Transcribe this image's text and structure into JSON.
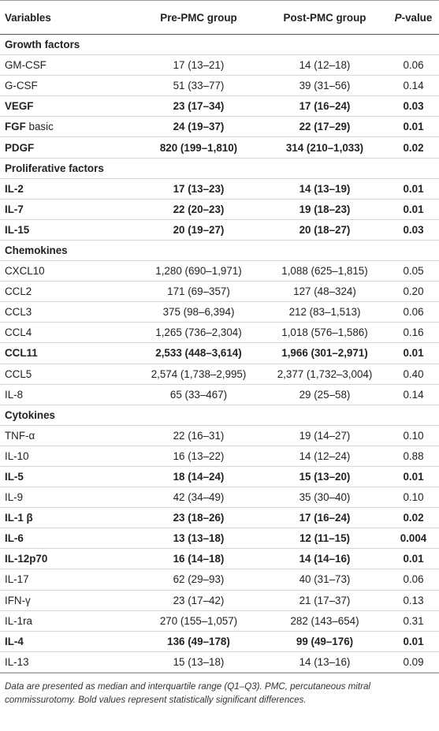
{
  "header": {
    "variables": "Variables",
    "pre": "Pre-PMC group",
    "post": "Post-PMC group",
    "p_italic": "P",
    "p_rest": "-value"
  },
  "sections": [
    {
      "title": "Growth factors",
      "rows": [
        {
          "name": "GM-CSF",
          "pre": "17 (13–21)",
          "post": "14 (12–18)",
          "p": "0.06",
          "bold": false
        },
        {
          "name": "G-CSF",
          "pre": "51 (33–77)",
          "post": "39 (31–56)",
          "p": "0.14",
          "bold": false
        },
        {
          "name": "VEGF",
          "pre": "23 (17–34)",
          "post": "17 (16–24)",
          "p": "0.03",
          "bold": true
        },
        {
          "name": "FGF",
          "name_suffix": "basic",
          "pre": "24 (19–37)",
          "post": "22 (17–29)",
          "p": "0.01",
          "bold": true
        },
        {
          "name": "PDGF",
          "pre": "820 (199–1,810)",
          "post": "314 (210–1,033)",
          "p": "0.02",
          "bold": true
        }
      ]
    },
    {
      "title": "Proliferative factors",
      "rows": [
        {
          "name": "IL-2",
          "pre": "17 (13–23)",
          "post": "14 (13–19)",
          "p": "0.01",
          "bold": true
        },
        {
          "name": "IL-7",
          "pre": "22 (20–23)",
          "post": "19 (18–23)",
          "p": "0.01",
          "bold": true
        },
        {
          "name": "IL-15",
          "pre": "20 (19–27)",
          "post": "20 (18–27)",
          "p": "0.03",
          "bold": true
        }
      ]
    },
    {
      "title": "Chemokines",
      "rows": [
        {
          "name": "CXCL10",
          "pre": "1,280 (690–1,971)",
          "post": "1,088 (625–1,815)",
          "p": "0.05",
          "bold": false
        },
        {
          "name": "CCL2",
          "pre": "171 (69–357)",
          "post": "127 (48–324)",
          "p": "0.20",
          "bold": false
        },
        {
          "name": "CCL3",
          "pre": "375 (98–6,394)",
          "post": "212 (83–1,513)",
          "p": "0.06",
          "bold": false
        },
        {
          "name": "CCL4",
          "pre": "1,265 (736–2,304)",
          "post": "1,018 (576–1,586)",
          "p": "0.16",
          "bold": false
        },
        {
          "name": "CCL11",
          "pre": "2,533 (448–3,614)",
          "post": "1,966 (301–2,971)",
          "p": "0.01",
          "bold": true
        },
        {
          "name": "CCL5",
          "pre": "2,574 (1,738–2,995)",
          "post": "2,377 (1,732–3,004)",
          "p": "0.40",
          "bold": false
        },
        {
          "name": "IL-8",
          "pre": "65 (33–467)",
          "post": "29 (25–58)",
          "p": "0.14",
          "bold": false
        }
      ]
    },
    {
      "title": "Cytokines",
      "rows": [
        {
          "name": "TNF-α",
          "pre": "22 (16–31)",
          "post": "19 (14–27)",
          "p": "0.10",
          "bold": false
        },
        {
          "name": "IL-10",
          "pre": "16 (13–22)",
          "post": "14 (12–24)",
          "p": "0.88",
          "bold": false
        },
        {
          "name": "IL-5",
          "pre": "18 (14–24)",
          "post": "15 (13–20)",
          "p": "0.01",
          "bold": true
        },
        {
          "name": "IL-9",
          "pre": "42 (34–49)",
          "post": "35 (30–40)",
          "p": "0.10",
          "bold": false
        },
        {
          "name": "IL-1 β",
          "pre": "23 (18–26)",
          "post": "17 (16–24)",
          "p": "0.02",
          "bold": true
        },
        {
          "name": "IL-6",
          "pre": "13 (13–18)",
          "post": "12 (11–15)",
          "p": "0.004",
          "bold": true
        },
        {
          "name": "IL-12p70",
          "pre": "16 (14–18)",
          "post": "14 (14–16)",
          "p": "0.01",
          "bold": true
        },
        {
          "name": "IL-17",
          "pre": "62 (29–93)",
          "post": "40 (31–73)",
          "p": "0.06",
          "bold": false
        },
        {
          "name": "IFN-γ",
          "pre": "23 (17–42)",
          "post": "21 (17–37)",
          "p": "0.13",
          "bold": false
        },
        {
          "name": "IL-1ra",
          "pre": "270 (155–1,057)",
          "post": "282 (143–654)",
          "p": "0.31",
          "bold": false
        },
        {
          "name": "IL-4",
          "pre": "136 (49–178)",
          "post": "99 (49–176)",
          "p": "0.01",
          "bold": true
        },
        {
          "name": "IL-13",
          "pre": "15 (13–18)",
          "post": "14 (13–16)",
          "p": "0.09",
          "bold": false
        }
      ]
    }
  ],
  "footnote": "Data are presented as median and interquartile range (Q1–Q3). PMC, percutaneous mitral commissurotomy. Bold values represent statistically significant differences."
}
